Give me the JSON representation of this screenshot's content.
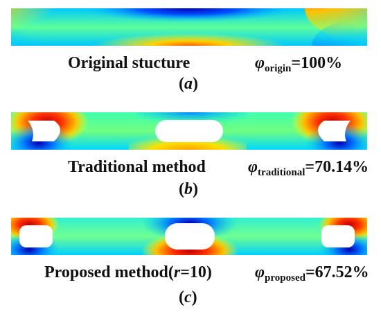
{
  "panels": [
    {
      "id": "a",
      "method_label": "Original stucture",
      "method_label_parts": {
        "prefix": "Original stucture",
        "var": "",
        "suffix": ""
      },
      "ratio": {
        "symbol": "φ",
        "subscript": "origin",
        "value": "=100%"
      },
      "letter": {
        "open": "(",
        "letter": "a",
        "close": ")"
      },
      "holes": []
    },
    {
      "id": "b",
      "method_label": "Traditional method",
      "method_label_parts": {
        "prefix": "Traditional method",
        "var": "",
        "suffix": ""
      },
      "ratio": {
        "symbol": "φ",
        "subscript": "traditional",
        "value": "=70.14%"
      },
      "letter": {
        "open": "(",
        "letter": "b",
        "close": ")"
      },
      "holes": [
        "left-hole",
        "center-hole",
        "right-hole"
      ]
    },
    {
      "id": "c",
      "method_label": "Proposed method(r=10)",
      "method_label_parts": {
        "prefix": "Proposed method(",
        "var": "r",
        "suffix": "=10)"
      },
      "ratio": {
        "symbol": "φ",
        "subscript": "proposed",
        "value": "=67.52%"
      },
      "letter": {
        "open": "(",
        "letter": "c",
        "close": ")"
      },
      "holes": [
        "left-hole",
        "center-hole",
        "right-hole"
      ]
    }
  ],
  "colormap": {
    "high": "#c00000",
    "mid_high": "#ff8c00",
    "mid": "#ffff00",
    "mid_low": "#00d0ff",
    "low": "#0000c8",
    "void": "#ffffff"
  }
}
